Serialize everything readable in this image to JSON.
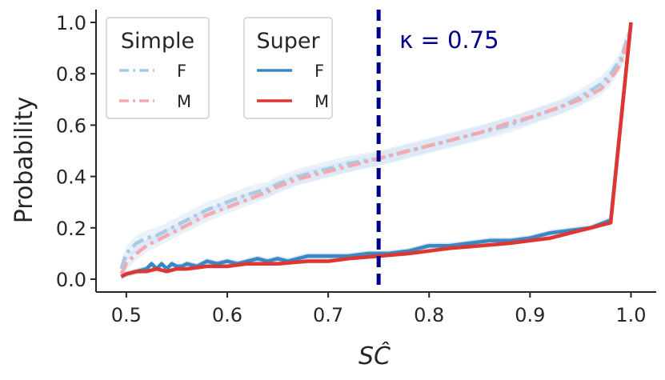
{
  "chart_data": {
    "type": "line",
    "title": "",
    "xlabel": "SĈ",
    "ylabel": "Probability",
    "xlim": [
      0.47,
      1.025
    ],
    "ylim": [
      -0.05,
      1.05
    ],
    "xticks": [
      "0.5",
      "0.6",
      "0.7",
      "0.8",
      "0.9",
      "1.0"
    ],
    "yticks": [
      "0.0",
      "0.2",
      "0.4",
      "0.6",
      "0.8",
      "1.0"
    ],
    "grid": false,
    "annotation": {
      "text": "κ = 0.75",
      "x": 0.75,
      "style": "vertical-dashed-line"
    },
    "legends": [
      {
        "title": "Simple",
        "entries": [
          "F",
          "M"
        ],
        "placement": "top-left"
      },
      {
        "title": "Super",
        "entries": [
          "F",
          "M"
        ],
        "placement": "top-left"
      }
    ],
    "series": [
      {
        "name": "F",
        "group": "Simple",
        "color": "#a6cbe3",
        "style": "dashdot",
        "x": [
          0.495,
          0.5,
          0.51,
          0.52,
          0.53,
          0.54,
          0.55,
          0.56,
          0.57,
          0.58,
          0.6,
          0.62,
          0.64,
          0.65,
          0.67,
          0.7,
          0.72,
          0.75,
          0.78,
          0.8,
          0.82,
          0.85,
          0.88,
          0.9,
          0.93,
          0.95,
          0.97,
          0.98,
          0.99,
          1.0
        ],
        "y": [
          0.04,
          0.1,
          0.14,
          0.16,
          0.17,
          0.19,
          0.21,
          0.23,
          0.25,
          0.27,
          0.3,
          0.33,
          0.35,
          0.37,
          0.4,
          0.43,
          0.45,
          0.47,
          0.5,
          0.52,
          0.54,
          0.57,
          0.6,
          0.63,
          0.67,
          0.71,
          0.76,
          0.8,
          0.86,
          0.98
        ]
      },
      {
        "name": "M",
        "group": "Simple",
        "color": "#f4a9b1",
        "style": "dashdot",
        "x": [
          0.495,
          0.5,
          0.51,
          0.52,
          0.53,
          0.54,
          0.55,
          0.56,
          0.57,
          0.58,
          0.6,
          0.62,
          0.64,
          0.65,
          0.67,
          0.7,
          0.72,
          0.75,
          0.78,
          0.8,
          0.82,
          0.85,
          0.88,
          0.9,
          0.93,
          0.95,
          0.97,
          0.98,
          0.99,
          1.0
        ],
        "y": [
          0.02,
          0.06,
          0.1,
          0.13,
          0.15,
          0.17,
          0.19,
          0.21,
          0.23,
          0.25,
          0.28,
          0.31,
          0.34,
          0.36,
          0.39,
          0.42,
          0.44,
          0.47,
          0.5,
          0.52,
          0.54,
          0.57,
          0.61,
          0.63,
          0.67,
          0.7,
          0.74,
          0.78,
          0.84,
          0.97
        ]
      },
      {
        "name": "F",
        "group": "Super",
        "color": "#3a87c2",
        "style": "solid",
        "x": [
          0.495,
          0.5,
          0.51,
          0.52,
          0.525,
          0.53,
          0.535,
          0.54,
          0.545,
          0.55,
          0.555,
          0.56,
          0.57,
          0.58,
          0.59,
          0.6,
          0.61,
          0.62,
          0.63,
          0.64,
          0.65,
          0.66,
          0.67,
          0.68,
          0.7,
          0.72,
          0.74,
          0.76,
          0.78,
          0.8,
          0.82,
          0.84,
          0.86,
          0.88,
          0.9,
          0.92,
          0.94,
          0.96,
          0.98,
          1.0
        ],
        "y": [
          0.01,
          0.02,
          0.03,
          0.04,
          0.06,
          0.04,
          0.06,
          0.04,
          0.06,
          0.05,
          0.05,
          0.06,
          0.05,
          0.07,
          0.06,
          0.07,
          0.06,
          0.07,
          0.08,
          0.07,
          0.08,
          0.07,
          0.08,
          0.09,
          0.09,
          0.09,
          0.1,
          0.1,
          0.11,
          0.13,
          0.13,
          0.14,
          0.15,
          0.15,
          0.16,
          0.18,
          0.19,
          0.2,
          0.23,
          1.0
        ]
      },
      {
        "name": "M",
        "group": "Super",
        "color": "#e03530",
        "style": "solid",
        "x": [
          0.495,
          0.5,
          0.51,
          0.52,
          0.53,
          0.54,
          0.55,
          0.56,
          0.58,
          0.6,
          0.62,
          0.65,
          0.68,
          0.7,
          0.72,
          0.75,
          0.78,
          0.8,
          0.82,
          0.85,
          0.88,
          0.9,
          0.92,
          0.94,
          0.96,
          0.98,
          1.0
        ],
        "y": [
          0.01,
          0.02,
          0.03,
          0.03,
          0.04,
          0.03,
          0.04,
          0.04,
          0.05,
          0.05,
          0.06,
          0.06,
          0.07,
          0.07,
          0.08,
          0.09,
          0.1,
          0.11,
          0.12,
          0.13,
          0.14,
          0.15,
          0.16,
          0.18,
          0.2,
          0.22,
          1.0
        ]
      }
    ]
  }
}
